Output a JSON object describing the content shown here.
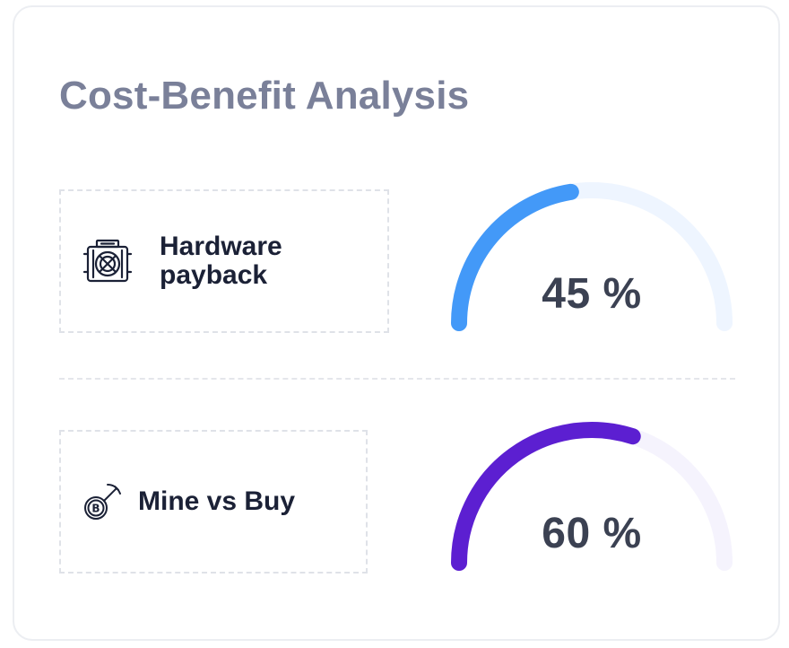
{
  "title": "Cost-Benefit Analysis",
  "metrics": [
    {
      "label": "Hardware payback",
      "icon": "asic-miner-icon",
      "value_text": "45 %",
      "percent": 45,
      "color": "#4399f8",
      "track_color": "#eef5ff"
    },
    {
      "label": "Mine vs Buy",
      "icon": "bitcoin-pickaxe-icon",
      "value_text": "60 %",
      "percent": 60,
      "color": "#5c1fd1",
      "track_color": "#f5f3fd"
    }
  ]
}
